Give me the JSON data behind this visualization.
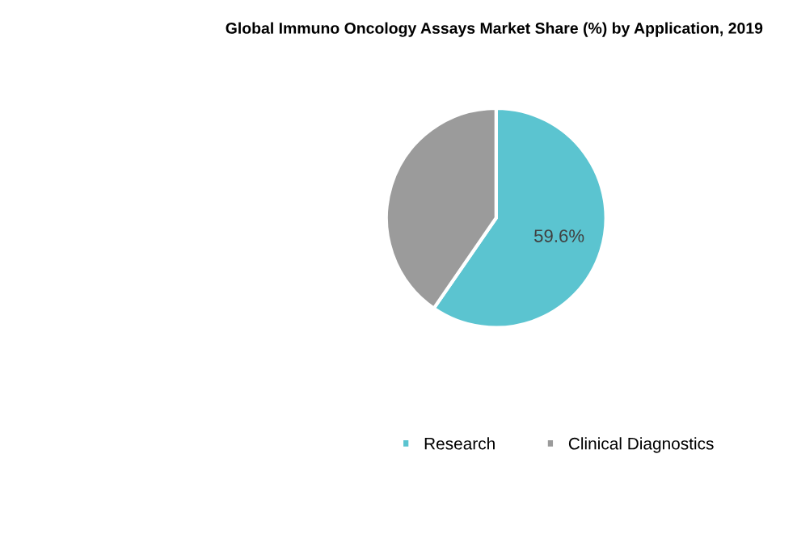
{
  "chart_data": {
    "type": "pie",
    "title": "Global Immuno Oncology Assays Market Share (%) by Application, 2019",
    "categories": [
      "Research",
      "Clinical Diagnostics"
    ],
    "values": [
      59.6,
      40.4
    ],
    "colors": [
      "#5bc4d0",
      "#9b9b9b"
    ],
    "value_labels": [
      "59.6%",
      null
    ],
    "legend": "bottom"
  }
}
